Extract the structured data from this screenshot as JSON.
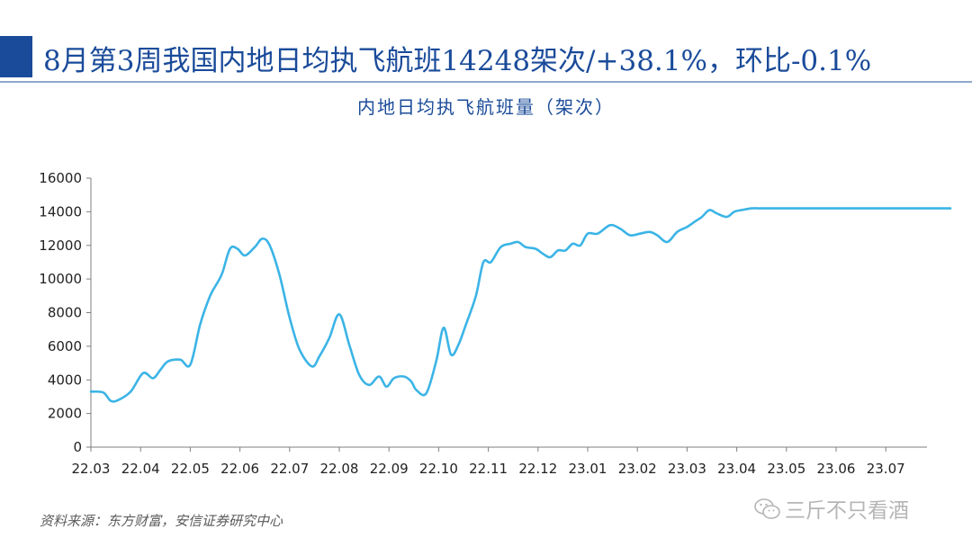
{
  "headline": "8月第3周我国内地日均执飞航班14248架次/+38.1%，环比-0.1%",
  "source_note": "资料来源：东方财富，安信证券研究中心",
  "watermark": "三斤不只看酒",
  "icons": {
    "watermark": "wechat-icon"
  },
  "colors": {
    "accent": "#1a4b9a",
    "series": "#3bb4e6",
    "axis": "#7f7f7f"
  },
  "chart_data": {
    "type": "line",
    "title": "内地日均执飞航班量（架次）",
    "xlabel": "",
    "ylabel": "",
    "ylim": [
      0,
      16000
    ],
    "yticks": [
      0,
      2000,
      4000,
      6000,
      8000,
      10000,
      12000,
      14000,
      16000
    ],
    "x_tick_labels": [
      "22.03",
      "22.04",
      "22.05",
      "22.06",
      "22.07",
      "22.08",
      "22.09",
      "22.10",
      "22.11",
      "22.12",
      "23.01",
      "23.02",
      "23.03",
      "23.04",
      "23.05",
      "23.06",
      "23.07"
    ],
    "x_unit": "month index (0 = 22.03)",
    "xlim": [
      0,
      17.4
    ],
    "grid": false,
    "legend": "none",
    "series": [
      {
        "x": [
          0,
          0.25,
          0.4,
          0.55,
          0.8,
          1.05,
          1.25,
          1.4,
          1.55,
          1.8,
          2.0,
          2.2,
          2.4,
          2.55,
          2.65,
          2.8,
          2.95,
          3.1,
          3.3,
          3.45,
          3.6,
          3.8,
          4.0,
          4.2,
          4.45,
          4.6,
          4.8,
          5.0,
          5.2,
          5.4,
          5.6,
          5.8,
          5.95,
          6.1,
          6.3,
          6.45,
          6.55,
          6.75,
          6.95,
          7.1,
          7.25,
          7.4,
          7.55,
          7.75,
          7.9,
          8.05,
          8.25,
          8.45,
          8.6,
          8.75,
          8.95,
          9.1,
          9.25,
          9.4,
          9.55,
          9.7,
          9.85,
          10.0,
          10.2,
          10.45,
          10.65,
          10.85,
          11.05,
          11.25,
          11.4,
          11.6,
          11.8,
          12.0,
          12.15,
          12.3,
          12.45,
          12.6,
          12.8,
          12.95,
          13.1,
          13.3,
          13.5,
          13.7,
          13.95,
          14.15,
          14.35,
          14.55,
          14.75,
          14.95,
          15.15,
          15.35,
          15.55,
          15.75,
          15.95,
          16.15,
          16.35,
          16.55,
          16.75,
          16.95,
          17.15,
          17.3
        ],
        "values": [
          3300,
          3250,
          2750,
          2800,
          3300,
          4400,
          4100,
          4600,
          5100,
          5200,
          4900,
          7300,
          9000,
          9800,
          10400,
          11800,
          11800,
          11400,
          11900,
          12400,
          12000,
          10200,
          7700,
          5800,
          4800,
          5400,
          6500,
          7900,
          6100,
          4300,
          3700,
          4200,
          3600,
          4100,
          4200,
          3900,
          3400,
          3200,
          5100,
          7100,
          5500,
          6100,
          7300,
          9000,
          11000,
          11000,
          11900,
          12100,
          12200,
          11900,
          11800,
          11500,
          11300,
          11700,
          11700,
          12100,
          12000,
          12700,
          12700,
          13200,
          13000,
          12600,
          12700,
          12800,
          12600,
          12200,
          12800,
          13100,
          13400,
          13700,
          14100,
          13900,
          13700,
          14000,
          14100,
          14200,
          14200,
          14200,
          14200,
          14200,
          14200,
          14200,
          14200,
          14200,
          14200,
          14200,
          14200,
          14200,
          14200,
          14200,
          14200,
          14200,
          14200,
          14200,
          14200,
          14200
        ]
      }
    ]
  }
}
